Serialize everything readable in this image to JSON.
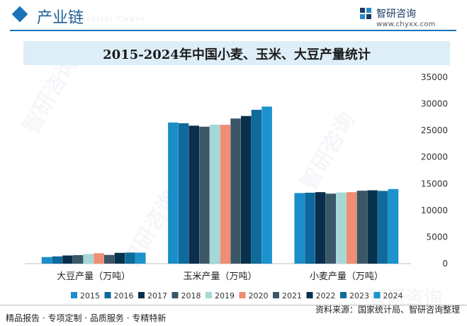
{
  "header": {
    "section_title": "产业链",
    "brand_name": "智研咨询",
    "brand_url": "www.chyxx.com"
  },
  "footer": {
    "left": "精品报告 · 专项定制 · 品质服务 · 专精特新",
    "right": "资料来源：国家统计局、智研咨询整理"
  },
  "colors": {
    "accent": "#1a72b8",
    "title_band": "#deeef8"
  },
  "chart_data": {
    "type": "bar",
    "title": "2015-2024年中国小麦、玉米、大豆产量统计",
    "categories": [
      "大豆产量（万吨）",
      "玉米产量（万吨）",
      "小麦产量（万吨）"
    ],
    "ylim": [
      0,
      35000
    ],
    "yticks": [
      0,
      5000,
      10000,
      15000,
      20000,
      25000,
      30000,
      35000
    ],
    "y_axis_side": "right",
    "legend_position": "bottom",
    "grid": false,
    "series": [
      {
        "name": "2015",
        "color": "#1b8ec9",
        "values": [
          1237,
          26499,
          13256
        ]
      },
      {
        "name": "2016",
        "color": "#0e6a9e",
        "values": [
          1360,
          26361,
          13319
        ]
      },
      {
        "name": "2017",
        "color": "#0b2e4c",
        "values": [
          1528,
          25907,
          13424
        ]
      },
      {
        "name": "2018",
        "color": "#3a5868",
        "values": [
          1597,
          25717,
          13144
        ]
      },
      {
        "name": "2019",
        "color": "#a5d8d6",
        "values": [
          1810,
          26078,
          13359
        ]
      },
      {
        "name": "2020",
        "color": "#ee8e74",
        "values": [
          1960,
          26067,
          13425
        ]
      },
      {
        "name": "2021",
        "color": "#3b5667",
        "values": [
          1640,
          27255,
          13695
        ]
      },
      {
        "name": "2022",
        "color": "#07324e",
        "values": [
          2028,
          27720,
          13772
        ]
      },
      {
        "name": "2023",
        "color": "#0e6b9c",
        "values": [
          2084,
          28884,
          13659
        ]
      },
      {
        "name": "2024",
        "color": "#1b93cd",
        "values": [
          2065,
          29492,
          14010
        ]
      }
    ]
  }
}
